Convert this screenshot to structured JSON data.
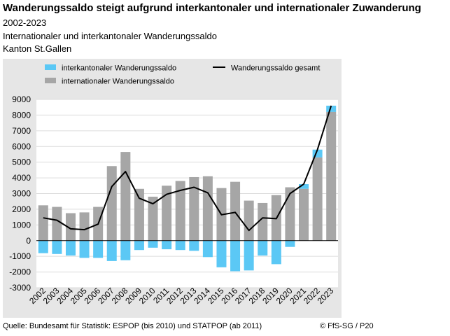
{
  "header": {
    "title": "Wanderungssaldo steigt aufgrund interkantonaler und internationaler Zuwanderung",
    "period": "2002-2023",
    "subtitle": "Internationaler und interkantonaler Wanderungssaldo",
    "region": "Kanton St.Gallen"
  },
  "footer": {
    "source": "Quelle: Bundesamt für Statistik: ESPOP (bis 2010) und STATPOP (ab 2011)",
    "credit": "© FfS-SG / P20"
  },
  "colors": {
    "interkantonal": "#5bc8f5",
    "international": "#a6a6a6",
    "gesamt": "#000000",
    "plot_background": "#e6e6e6",
    "gridline": "#ffffff"
  },
  "chart_data": {
    "type": "bar",
    "stacked": true,
    "categories": [
      "2002",
      "2003",
      "2004",
      "2005",
      "2006",
      "2007",
      "2008",
      "2009",
      "2010",
      "2011",
      "2012",
      "2013",
      "2014",
      "2015",
      "2016",
      "2017",
      "2018",
      "2019",
      "2020",
      "2021",
      "2022",
      "2023"
    ],
    "series": [
      {
        "name": "interkantonaler Wanderungssaldo",
        "type": "bar",
        "values": [
          -800,
          -850,
          -950,
          -1100,
          -1100,
          -1300,
          -1250,
          -600,
          -450,
          -550,
          -600,
          -650,
          -1050,
          -1700,
          -1950,
          -1900,
          -950,
          -1500,
          -400,
          300,
          500,
          400
        ]
      },
      {
        "name": "internationaler Wanderungssaldo",
        "type": "bar",
        "values": [
          2250,
          2150,
          1750,
          1800,
          2150,
          4750,
          5650,
          3300,
          2800,
          3500,
          3800,
          4050,
          4100,
          3350,
          3750,
          2550,
          2400,
          2900,
          3400,
          3300,
          5300,
          8200
        ]
      },
      {
        "name": "Wanderungssaldo gesamt",
        "type": "line",
        "values": [
          1450,
          1300,
          750,
          700,
          1050,
          3450,
          4400,
          2700,
          2350,
          2950,
          3200,
          3400,
          3050,
          1650,
          1800,
          650,
          1450,
          1400,
          3000,
          3600,
          5800,
          8600
        ]
      }
    ],
    "ylim": [
      -3000,
      9000
    ],
    "yticks": [
      "-3000",
      "-2000",
      "-1000",
      "0",
      "1000",
      "2000",
      "3000",
      "4000",
      "5000",
      "6000",
      "7000",
      "8000",
      "9000"
    ],
    "grid": true,
    "legend_position": "top"
  }
}
